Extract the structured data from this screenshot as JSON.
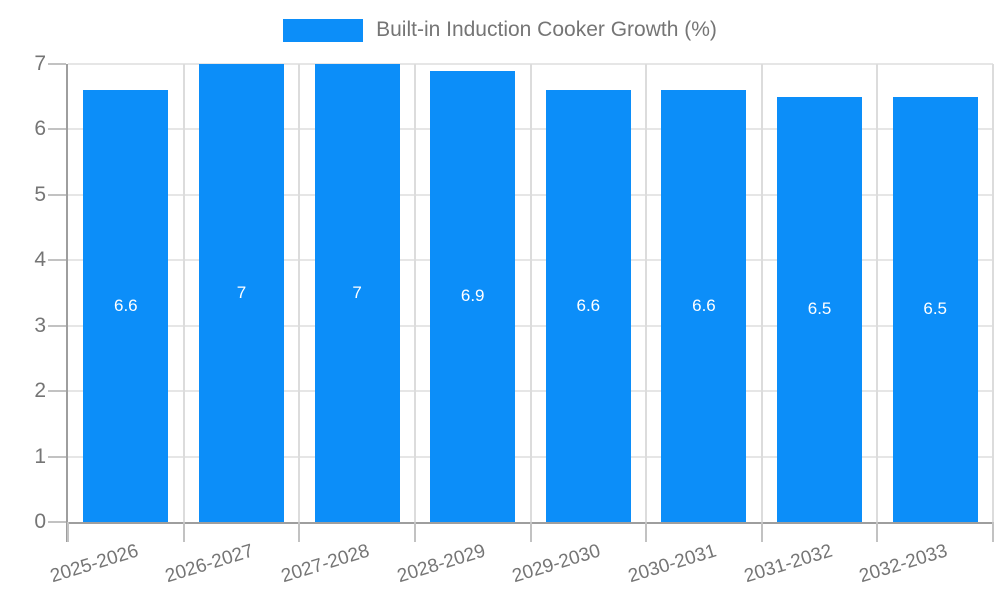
{
  "legend": {
    "label": "Built-in Induction Cooker Growth (%)",
    "swatch_color": "#0c8ef9"
  },
  "chart_data": {
    "type": "bar",
    "title": "Built-in Induction Cooker Growth (%)",
    "categories": [
      "2025-2026",
      "2026-2027",
      "2027-2028",
      "2028-2029",
      "2029-2030",
      "2030-2031",
      "2031-2032",
      "2032-2033"
    ],
    "values": [
      6.6,
      7,
      7,
      6.9,
      6.6,
      6.6,
      6.5,
      6.5
    ],
    "bar_labels": [
      "6.6",
      "7",
      "7",
      "6.9",
      "6.6",
      "6.6",
      "6.5",
      "6.5"
    ],
    "xlabel": "",
    "ylabel": "",
    "ylim": [
      0,
      7
    ],
    "yticks": [
      0,
      1,
      2,
      3,
      4,
      5,
      6,
      7
    ],
    "grid": true,
    "legend_position": "top-center",
    "colors": {
      "bar": "#0c8ef9",
      "bar_label_text": "#ffffff",
      "axis_line": "#9e9e9e",
      "gridline": "#e6e6e6",
      "tick": "#c2c2c2",
      "axis_text": "#757575"
    }
  }
}
